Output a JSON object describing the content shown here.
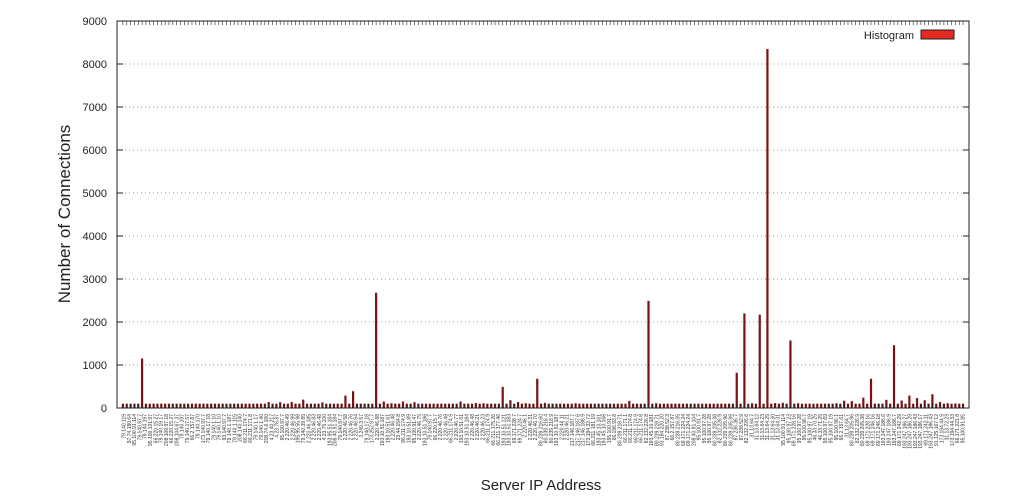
{
  "chart_data": {
    "type": "bar",
    "xlabel": "Server IP Address",
    "ylabel": "Number of Connections",
    "ylim": [
      0,
      9000
    ],
    "yticks": [
      0,
      1000,
      2000,
      3000,
      4000,
      5000,
      6000,
      7000,
      8000,
      9000
    ],
    "grid": "horizontal-dotted",
    "legend_position": "top-right",
    "series": [
      {
        "name": "Histogram",
        "color": "#e32b22",
        "bar_color": "#7a1212"
      }
    ],
    "bar_count": 220,
    "nonzero_bars": [
      {
        "index": 5,
        "value": 1150
      },
      {
        "index": 38,
        "value": 140
      },
      {
        "index": 41,
        "value": 135
      },
      {
        "index": 44,
        "value": 140
      },
      {
        "index": 47,
        "value": 195
      },
      {
        "index": 52,
        "value": 130
      },
      {
        "index": 58,
        "value": 290
      },
      {
        "index": 60,
        "value": 390
      },
      {
        "index": 66,
        "value": 2680
      },
      {
        "index": 68,
        "value": 150
      },
      {
        "index": 70,
        "value": 110
      },
      {
        "index": 73,
        "value": 150
      },
      {
        "index": 76,
        "value": 135
      },
      {
        "index": 88,
        "value": 150
      },
      {
        "index": 92,
        "value": 115
      },
      {
        "index": 94,
        "value": 110
      },
      {
        "index": 99,
        "value": 490
      },
      {
        "index": 101,
        "value": 180
      },
      {
        "index": 103,
        "value": 140
      },
      {
        "index": 105,
        "value": 110
      },
      {
        "index": 108,
        "value": 680
      },
      {
        "index": 110,
        "value": 120
      },
      {
        "index": 118,
        "value": 110
      },
      {
        "index": 128,
        "value": 100
      },
      {
        "index": 132,
        "value": 165
      },
      {
        "index": 137,
        "value": 2490
      },
      {
        "index": 139,
        "value": 110
      },
      {
        "index": 145,
        "value": 100
      },
      {
        "index": 160,
        "value": 820
      },
      {
        "index": 162,
        "value": 2200
      },
      {
        "index": 164,
        "value": 110
      },
      {
        "index": 166,
        "value": 2170
      },
      {
        "index": 168,
        "value": 8350
      },
      {
        "index": 170,
        "value": 115
      },
      {
        "index": 172,
        "value": 120
      },
      {
        "index": 174,
        "value": 1570
      },
      {
        "index": 176,
        "value": 110
      },
      {
        "index": 186,
        "value": 110
      },
      {
        "index": 188,
        "value": 170
      },
      {
        "index": 190,
        "value": 160
      },
      {
        "index": 193,
        "value": 240
      },
      {
        "index": 195,
        "value": 680
      },
      {
        "index": 199,
        "value": 190
      },
      {
        "index": 201,
        "value": 1460
      },
      {
        "index": 203,
        "value": 175
      },
      {
        "index": 205,
        "value": 290
      },
      {
        "index": 207,
        "value": 230
      },
      {
        "index": 209,
        "value": 180
      },
      {
        "index": 211,
        "value": 320
      },
      {
        "index": 213,
        "value": 140
      },
      {
        "index": 215,
        "value": 110
      },
      {
        "index": 217,
        "value": 105
      }
    ],
    "baseline_value": 100,
    "tick_labels": [
      "79.140.119",
      "97.74.180.64",
      "95.100.91.114",
      "79.140.97.7",
      "79.140.197",
      "95.100.101.97",
      "66.220.15.27",
      "79.140.19.17",
      "208.109.97.18",
      "66.220.15.27",
      "208.104.67.37",
      "79.140.197",
      "79.140.17.57",
      "66.2.157.87",
      "79.140.170",
      "173.140.97.7",
      "79.140.17.18",
      "79.140.1.10",
      "79.140.1.10",
      "93.140.97.7",
      "79.140.1.187",
      "79.140.1.115",
      "208.140.140",
      "66.211.174.7",
      "66.211.171.8",
      "79.140.1.17",
      "79.140.1.40",
      "208.74.6.160",
      "4.23.40.217",
      "4.23.76.87",
      "95.100.97.7",
      "2.220.46.49",
      "2.220.46.99",
      "195.95.55.98",
      "79.140.39.85",
      "2.220.46.185",
      "2.220.46.83",
      "2.220.46.48",
      "4.23.75.100",
      "193.95.51.184",
      "208.40.91.184",
      "79.140.97.7",
      "2.220.46.58",
      "2.220.46.76",
      "2.220.46.54",
      "3.249.3.57",
      "79.140.17.18",
      "173.252.97.7",
      "2.220.46.88",
      "193.10.51.187",
      "193.10.51.61",
      "2.220.46.48",
      "23.44.154.8",
      "86.211.174.9",
      "193.10.51.89",
      "95.100.91.47",
      "2.220.46.75",
      "193.10.51.186",
      "79.140.97.7",
      "66.220.15.7",
      "2.220.46.76",
      "2.220.46.48",
      "66.211.174.9",
      "2.220.46.77",
      "193.10.51.61",
      "193.10.51.184",
      "2.220.46.48",
      "2.220.46.21",
      "2.220.46.23",
      "66.211.174.9",
      "66.211.175.26",
      "66.211.177.46",
      "193.10.51.121",
      "193.10.51.183",
      "69.171.228.7",
      "69.171.224.7",
      "2.220.46.1",
      "2.220.46.31",
      "2.220.46.70",
      "80.239.216.60",
      "80.239.216.4",
      "80.239.218.9",
      "193.10.51.187",
      "2.220.46.11",
      "2.220.46.21",
      "217.146.187.7",
      "217.146.187.6",
      "217.146.188.9",
      "173.194.32.72",
      "66.211.181.19",
      "193.45.10.161",
      "193.45.10.168",
      "195.100.91.7",
      "66.196.93.8",
      "80.239.218.71",
      "66.211.171.1",
      "66.211.174.8",
      "66.211.174.9",
      "66.211.174.8",
      "82.132.226.8",
      "193.45.10.181",
      "80.239.218.71",
      "93.184.220.20",
      "87.238.52.3",
      "66.2.157.87",
      "80.239.216.05",
      "69.171.224.24",
      "69.171.224.24",
      "208.40.91.104",
      "95.100.91.7",
      "95.100.97.28",
      "95.100.97.28",
      "80.239.205.38",
      "82.132.226.9",
      "80.239.205.96",
      "80.239.205.99",
      "87.236.36.7",
      "87.238.52.9",
      "82.132.226.6",
      "31.13.64.7",
      "31.13.64.12",
      "31.13.64.23",
      "31.13.64.25",
      "31.13.64.30",
      "31.13.64.31",
      "95.100.91.114",
      "95.100.97.23",
      "69.171.228.16",
      "95.100.97.28",
      "95.100.96.7",
      "95.100.97.19",
      "46.33.70.25",
      "46.33.71.25",
      "95.100.97.69",
      "95.100.97.19",
      "95.100.96.1",
      "66.2.157.61",
      "31.13.64.7",
      "80.239.205.96",
      "82.132.226.9",
      "80.239.205.38",
      "69.171.228.16",
      "69.171.246.16",
      "69.171.246.18",
      "193.247.186.6",
      "193.247.186.9",
      "193.247.186.7",
      "69.171.242.29",
      "193.247.186.27",
      "193.247.186.29",
      "193.247.186.43",
      "193.247.186.17",
      "69.171.242.11",
      "193.247.186.43",
      "91.125.167.12",
      "173.194.44.9",
      "31.13.72.23",
      "173.194.44.33",
      "66.171.221.8",
      "95.100.91.85"
    ]
  }
}
